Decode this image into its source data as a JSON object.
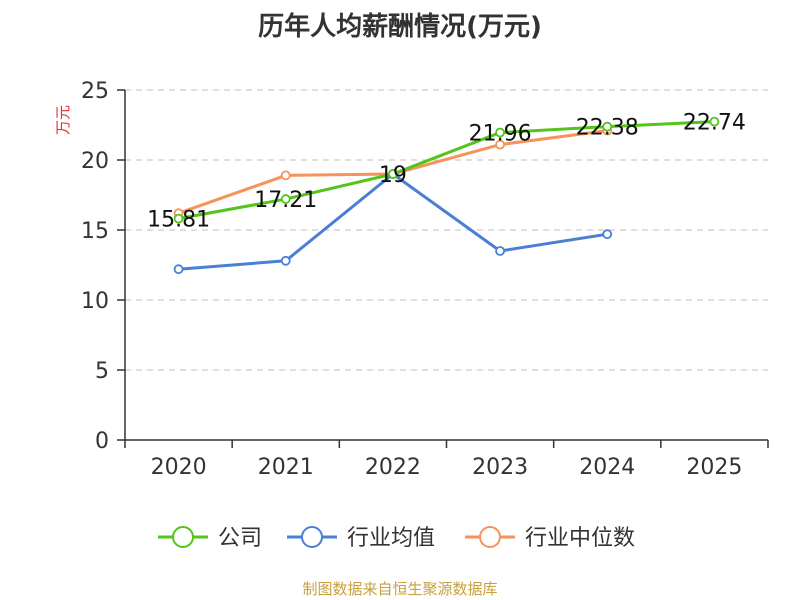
{
  "chart_data": {
    "type": "line",
    "title": "历年人均薪酬情况(万元)",
    "ylabel": "万元",
    "xlabel": "",
    "categories": [
      "2020",
      "2021",
      "2022",
      "2023",
      "2024",
      "2025"
    ],
    "ylim": [
      0,
      25
    ],
    "yticks": [
      0,
      5,
      10,
      15,
      20,
      25
    ],
    "grid": true,
    "legend_position": "bottom",
    "series": [
      {
        "name": "公司",
        "color": "#52c41a",
        "values": [
          15.81,
          17.21,
          19,
          21.96,
          22.38,
          22.74
        ],
        "labels": [
          "15.81",
          "17.21",
          "19",
          "21.96",
          "22.38",
          "22.74"
        ]
      },
      {
        "name": "行业均值",
        "color": "#4a7fd6",
        "values": [
          12.2,
          12.8,
          19.0,
          13.5,
          14.7,
          null
        ],
        "labels": []
      },
      {
        "name": "行业中位数",
        "color": "#f5935a",
        "values": [
          16.2,
          18.9,
          19.0,
          21.1,
          22.1,
          null
        ],
        "labels": []
      }
    ]
  },
  "source_note": "制图数据来自恒生聚源数据库",
  "ylabel_color": "#e03030"
}
